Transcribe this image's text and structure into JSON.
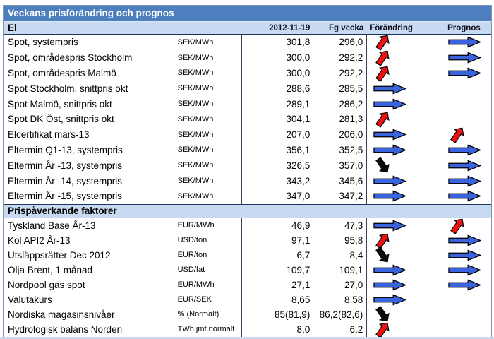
{
  "title": "Veckans prisförändring och prognos",
  "columns": {
    "date": "2012-11-19",
    "prev": "Fg vecka",
    "change": "Förändring",
    "prognosis": "Prognos"
  },
  "colors": {
    "title_bar": "#4d7ebd",
    "section_bg": "#c8daf2",
    "arrow_blue": "#3a63de",
    "arrow_red": "#ee1111",
    "arrow_black": "#0a0a0a"
  },
  "sections": [
    {
      "name": "El",
      "rows": [
        {
          "label": "Spot, systempris",
          "unit": "SEK/MWh",
          "current": "301,8",
          "previous": "296,0",
          "change": "up",
          "prognosis": "right"
        },
        {
          "label": "Spot, områdespris Stockholm",
          "unit": "SEK/MWh",
          "current": "300,0",
          "previous": "292,2",
          "change": "up",
          "prognosis": "right"
        },
        {
          "label": "Spot, områdespris Malmö",
          "unit": "SEK/MWh",
          "current": "300,0",
          "previous": "292,2",
          "change": "up",
          "prognosis": "right"
        },
        {
          "label": "Spot Stockholm, snittpris okt",
          "unit": "SEK/MWh",
          "current": "288,6",
          "previous": "285,5",
          "change": "right",
          "prognosis": "none"
        },
        {
          "label": "Spot Malmö, snittpris okt",
          "unit": "SEK/MWh",
          "current": "289,1",
          "previous": "286,2",
          "change": "right",
          "prognosis": "none"
        },
        {
          "label": "Spot DK Öst, snittpris okt",
          "unit": "SEK/MWh",
          "current": "304,1",
          "previous": "281,3",
          "change": "up",
          "prognosis": "none"
        },
        {
          "label": "Elcertifikat mars-13",
          "unit": "SEK/MWh",
          "current": "207,0",
          "previous": "206,0",
          "change": "right",
          "prognosis": "up"
        },
        {
          "label": "Eltermin Q1-13, systempris",
          "unit": "SEK/MWh",
          "current": "356,1",
          "previous": "352,5",
          "change": "right",
          "prognosis": "right"
        },
        {
          "label": "Eltermin År -13, systempris",
          "unit": "SEK/MWh",
          "current": "326,5",
          "previous": "357,0",
          "change": "down",
          "prognosis": "right"
        },
        {
          "label": "Eltermin År -14, systempris",
          "unit": "SEK/MWh",
          "current": "343,2",
          "previous": "345,6",
          "change": "right",
          "prognosis": "right"
        },
        {
          "label": "Eltermin År -15, systempris",
          "unit": "SEK/MWh",
          "current": "347,0",
          "previous": "347,2",
          "change": "right",
          "prognosis": "right"
        }
      ]
    },
    {
      "name": "Prispåverkande faktorer",
      "rows": [
        {
          "label": "Tyskland Base År-13",
          "unit": "EUR/MWh",
          "current": "46,9",
          "previous": "47,3",
          "change": "right",
          "prognosis": "up"
        },
        {
          "label": "Kol API2 År-13",
          "unit": "USD/ton",
          "current": "97,1",
          "previous": "95,8",
          "change": "up",
          "prognosis": "right"
        },
        {
          "label": "Utsläppsrätter Dec 2012",
          "unit": "EUR/ton",
          "current": "6,7",
          "previous": "8,4",
          "change": "down",
          "prognosis": "right"
        },
        {
          "label": "Olja Brent, 1 månad",
          "unit": "USD/fat",
          "current": "109,7",
          "previous": "109,1",
          "change": "right",
          "prognosis": "right"
        },
        {
          "label": "Nordpool gas spot",
          "unit": "EUR/MWh",
          "current": "27,1",
          "previous": "27,0",
          "change": "right",
          "prognosis": "right"
        },
        {
          "label": "Valutakurs",
          "unit": "EUR/SEK",
          "current": "8,65",
          "previous": "8,58",
          "change": "right",
          "prognosis": "none"
        },
        {
          "label": "Nordiska magasinsnivåer",
          "unit": "% (Normalt)",
          "current": "85(81,9)",
          "previous": "86,2(82,6)",
          "change": "down",
          "prognosis": "none"
        },
        {
          "label": "Hydrologisk balans Norden",
          "unit": "TWh jmf normalt",
          "current": "8,0",
          "previous": "6,2",
          "change": "up",
          "prognosis": "none"
        }
      ]
    }
  ]
}
